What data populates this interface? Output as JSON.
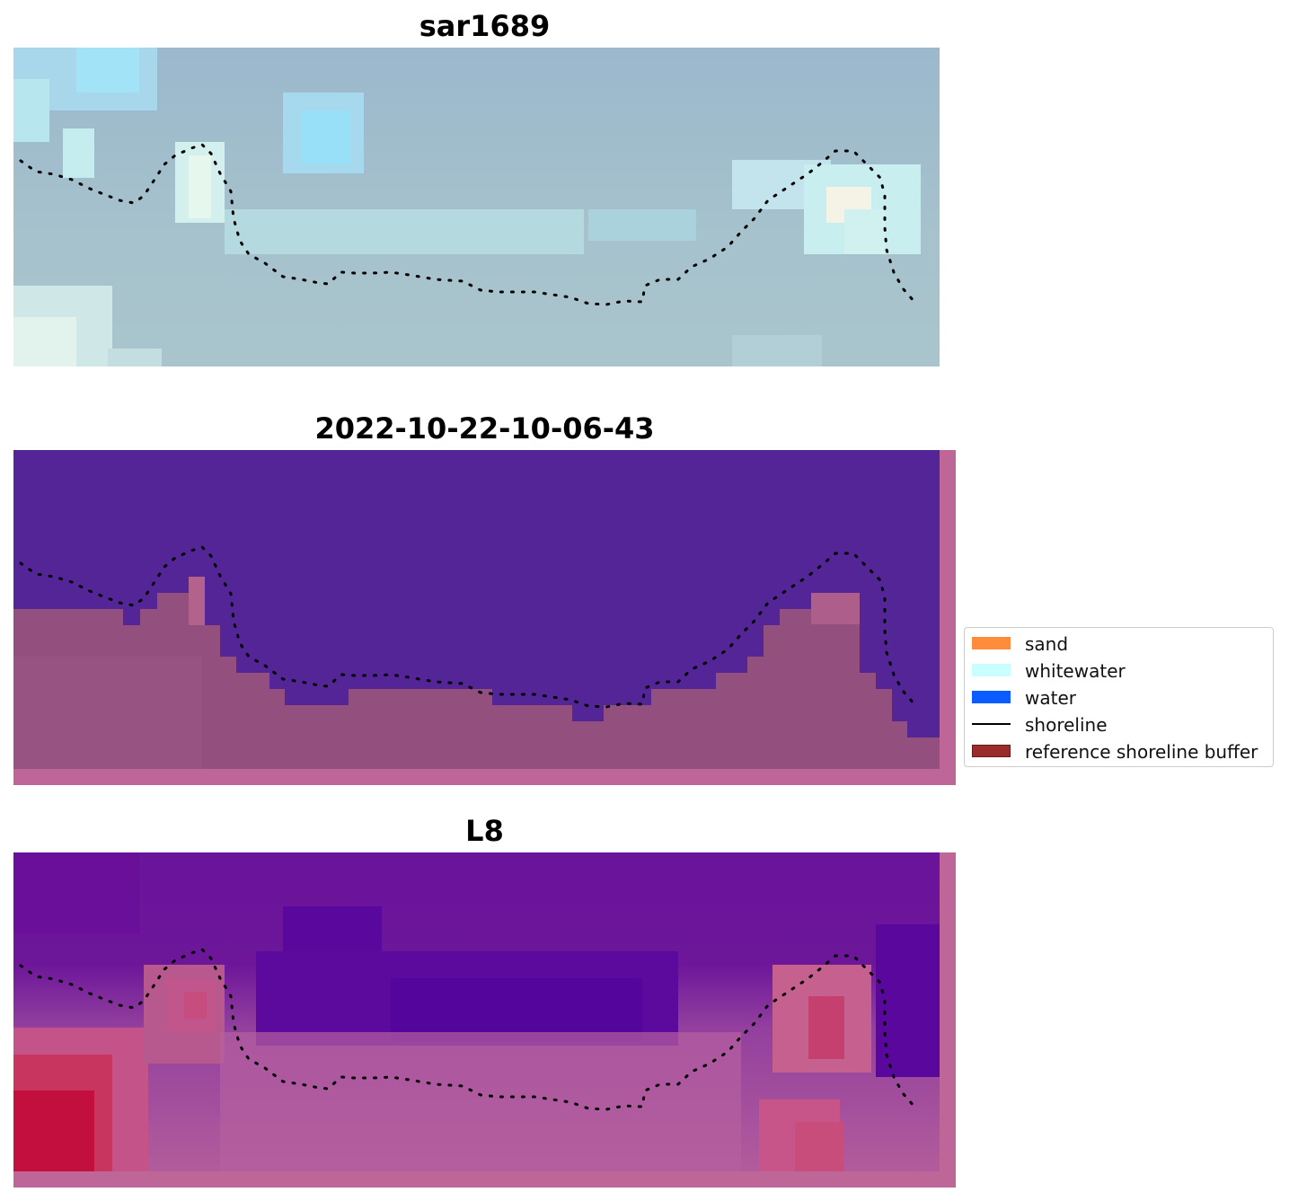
{
  "panels": [
    {
      "title": "sar1689",
      "colors": {
        "base": "#9ab7c8",
        "accent_light": "#c9eaf0",
        "accent_bright": "#9ee2f3",
        "highlight": "#f2f3ea"
      }
    },
    {
      "title": "2022-10-22-10-06-43",
      "colors": {
        "water": "#532596",
        "land": "#93507f",
        "border": "#bd6697",
        "land_light": "#b7648e"
      }
    },
    {
      "title": "L8",
      "colors": {
        "water_dark": "#52069d",
        "water": "#6a139b",
        "land": "#b9619a",
        "land_hot": "#c00031",
        "border": "#bd6697"
      }
    }
  ],
  "legend": {
    "items": [
      {
        "label": "sand",
        "color": "#ff8c3a",
        "kind": "patch"
      },
      {
        "label": "whitewater",
        "color": "#c8ffff",
        "kind": "patch"
      },
      {
        "label": "water",
        "color": "#0a5cff",
        "kind": "patch"
      },
      {
        "label": "shoreline",
        "color": "#000000",
        "kind": "line"
      },
      {
        "label": "reference shoreline buffer",
        "color": "#9b2c2c",
        "kind": "patch"
      }
    ]
  }
}
